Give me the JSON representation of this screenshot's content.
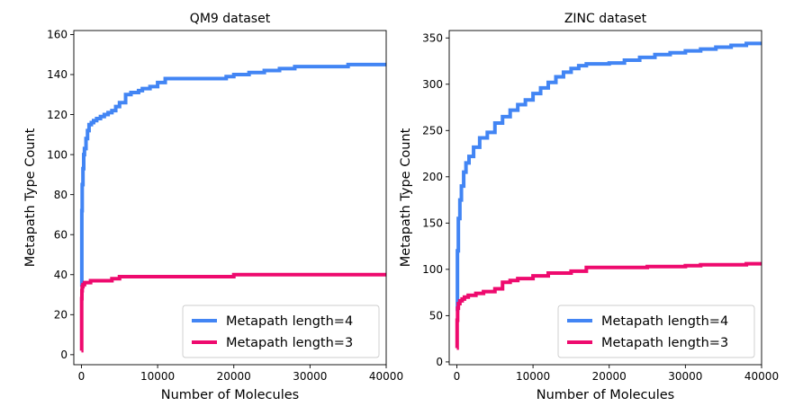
{
  "colors": {
    "len4": "#4285f4",
    "len3": "#ee0a6e"
  },
  "chart_data": [
    {
      "type": "line",
      "title": "QM9 dataset",
      "xlabel": "Number of Molecules",
      "ylabel": "Metapath Type Count",
      "xlim": [
        -1000,
        40000
      ],
      "ylim": [
        -5,
        162
      ],
      "xticks": [
        0,
        10000,
        20000,
        30000,
        40000
      ],
      "xtick_labels": [
        "0",
        "10000",
        "20000",
        "30000",
        "40000"
      ],
      "yticks": [
        0,
        20,
        40,
        60,
        80,
        100,
        120,
        140,
        160
      ],
      "ytick_labels": [
        "0",
        "20",
        "40",
        "60",
        "80",
        "100",
        "120",
        "140",
        "160"
      ],
      "legend": [
        "Metapath length=4",
        "Metapath length=3"
      ],
      "legend_loc": "lower right",
      "series": [
        {
          "name": "Metapath length=4",
          "x": [
            1,
            50,
            100,
            200,
            300,
            400,
            600,
            800,
            1000,
            1300,
            1600,
            2000,
            2500,
            3000,
            3500,
            4000,
            4500,
            5000,
            5800,
            6500,
            7500,
            8000,
            9000,
            10000,
            11000,
            12000,
            15000,
            19000,
            20000,
            22000,
            24000,
            26000,
            28000,
            35000,
            40000
          ],
          "y": [
            34,
            72,
            85,
            93,
            100,
            103,
            108,
            112,
            115,
            116,
            117,
            118,
            119,
            120,
            121,
            122,
            124,
            126,
            130,
            131,
            132,
            133,
            134,
            136,
            138,
            138,
            138,
            139,
            140,
            141,
            142,
            143,
            144,
            145,
            145
          ]
        },
        {
          "name": "Metapath length=3",
          "x": [
            1,
            30,
            60,
            100,
            200,
            400,
            700,
            1200,
            2000,
            3000,
            4000,
            5000,
            7000,
            10000,
            15000,
            19000,
            20000,
            40000
          ],
          "y": [
            2,
            28,
            32,
            34,
            35,
            36,
            36,
            37,
            37,
            37,
            38,
            39,
            39,
            39,
            39,
            39,
            40,
            40
          ]
        }
      ]
    },
    {
      "type": "line",
      "title": "ZINC dataset",
      "xlabel": "Number of Molecules",
      "ylabel": "Metapath Type Count",
      "xlim": [
        -1000,
        40000
      ],
      "ylim": [
        -3,
        358
      ],
      "xticks": [
        0,
        10000,
        20000,
        30000,
        40000
      ],
      "xtick_labels": [
        "0",
        "10000",
        "20000",
        "30000",
        "40000"
      ],
      "yticks": [
        0,
        50,
        100,
        150,
        200,
        250,
        300,
        350
      ],
      "ytick_labels": [
        "0",
        "50",
        "100",
        "150",
        "200",
        "250",
        "300",
        "350"
      ],
      "legend": [
        "Metapath length=4",
        "Metapath length=3"
      ],
      "legend_loc": "lower right",
      "series": [
        {
          "name": "Metapath length=4",
          "x": [
            1,
            80,
            200,
            400,
            600,
            900,
            1200,
            1600,
            2200,
            3000,
            4000,
            5000,
            6000,
            7000,
            8000,
            9000,
            10000,
            11000,
            12000,
            13000,
            14000,
            15000,
            16000,
            17000,
            20000,
            22000,
            24000,
            26000,
            28000,
            30000,
            32000,
            34000,
            36000,
            38000,
            40000
          ],
          "y": [
            55,
            120,
            155,
            175,
            190,
            205,
            215,
            222,
            232,
            242,
            248,
            258,
            265,
            272,
            278,
            283,
            290,
            296,
            302,
            308,
            313,
            317,
            320,
            322,
            323,
            326,
            329,
            332,
            334,
            336,
            338,
            340,
            342,
            344,
            346
          ]
        },
        {
          "name": "Metapath length=3",
          "x": [
            1,
            40,
            100,
            200,
            400,
            700,
            1000,
            1500,
            2500,
            3500,
            5000,
            6000,
            7000,
            8000,
            10000,
            12000,
            15000,
            17000,
            20000,
            25000,
            30000,
            32000,
            35000,
            38000,
            40000
          ],
          "y": [
            15,
            45,
            58,
            63,
            66,
            68,
            70,
            72,
            74,
            76,
            79,
            86,
            88,
            90,
            93,
            96,
            98,
            102,
            102,
            103,
            104,
            105,
            105,
            106,
            108
          ]
        }
      ]
    }
  ]
}
